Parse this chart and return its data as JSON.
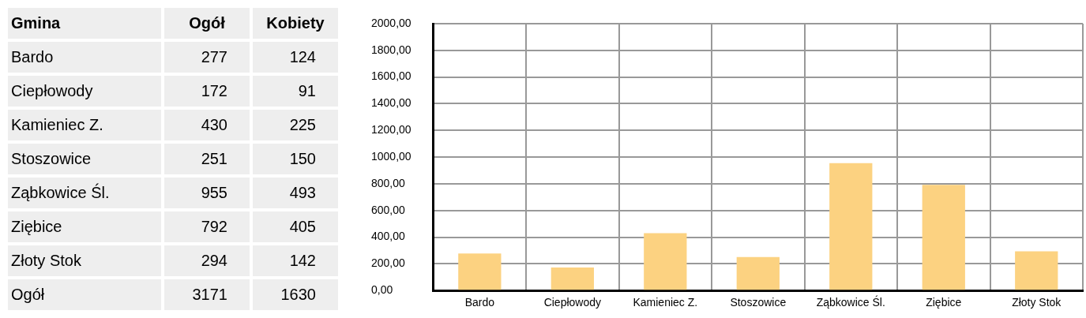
{
  "chart_data": [
    {
      "type": "other",
      "xlabel": "Gmina",
      "categories": [
        "Bardo",
        "Ciepłowody",
        "Kamieniec Z.",
        "Stoszowice",
        "Ząbkowice Śl.",
        "Ziębice",
        "Złoty Stok",
        "Ogół"
      ],
      "series": [
        {
          "name": "Ogół",
          "values": [
            277,
            172,
            430,
            251,
            955,
            792,
            294,
            3171
          ]
        },
        {
          "name": "Kobiety",
          "values": [
            124,
            91,
            225,
            150,
            493,
            405,
            142,
            1630
          ]
        }
      ],
      "data_labels": true
    },
    {
      "type": "bar",
      "categories": [
        "Bardo",
        "Ciepłowody",
        "Kamieniec Z.",
        "Stoszowice",
        "Ząbkowice Śl.",
        "Ziębice",
        "Złoty Stok"
      ],
      "values": [
        277,
        172,
        430,
        251,
        955,
        792,
        294
      ],
      "color": "#fcd281",
      "ylim": [
        0,
        2000
      ],
      "yticks": [
        {
          "value": 0,
          "label": "0,00"
        },
        {
          "value": 200,
          "label": "200,00"
        },
        {
          "value": 400,
          "label": "400,00"
        },
        {
          "value": 600,
          "label": "600,00"
        },
        {
          "value": 800,
          "label": "800,00"
        },
        {
          "value": 1000,
          "label": "1000,00"
        },
        {
          "value": 1200,
          "label": "1200,00"
        },
        {
          "value": 1400,
          "label": "1400,00"
        },
        {
          "value": 1600,
          "label": "1600,00"
        },
        {
          "value": 1800,
          "label": "1800,00"
        },
        {
          "value": 2000,
          "label": "2000,00"
        }
      ],
      "grid": true
    }
  ]
}
